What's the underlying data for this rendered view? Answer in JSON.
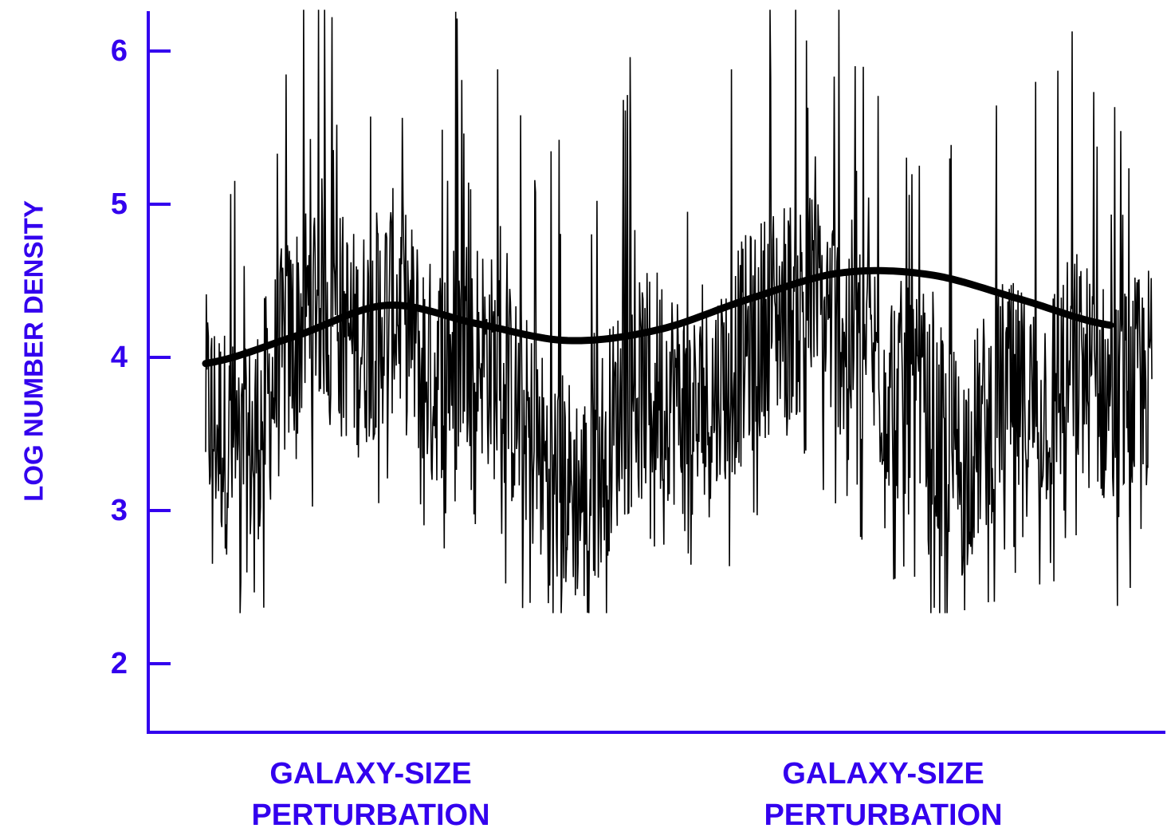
{
  "chart_data": {
    "type": "line",
    "ylabel": "LOG NUMBER DENSITY",
    "xlabel": "",
    "ylim": [
      1.55,
      6.3
    ],
    "yticks": [
      2,
      3,
      4,
      5,
      6
    ],
    "ytick_labels": [
      "2",
      "3",
      "4",
      "5",
      "6"
    ],
    "axis_color": "#3300ee",
    "line_color": "#000000",
    "x_captions": [
      {
        "line1": "GALAXY-SIZE",
        "line2": "PERTURBATION"
      },
      {
        "line1": "GALAXY-SIZE",
        "line2": "PERTURBATION"
      }
    ],
    "series": [
      {
        "role": "fluctuating density",
        "x": [
          0,
          0.04,
          0.08,
          0.12,
          0.16,
          0.2,
          0.24,
          0.28,
          0.32,
          0.36,
          0.4,
          0.44,
          0.48,
          0.52,
          0.56,
          0.6,
          0.64,
          0.68,
          0.72,
          0.76,
          0.8,
          0.84,
          0.88,
          0.92,
          0.96,
          1.0
        ],
        "y": [
          3.6,
          3.2,
          3.9,
          4.4,
          4.0,
          4.3,
          3.8,
          4.1,
          3.7,
          3.2,
          3.0,
          3.6,
          3.8,
          3.5,
          3.9,
          4.2,
          4.3,
          4.1,
          3.8,
          3.5,
          3.2,
          3.7,
          3.6,
          3.9,
          3.6,
          3.8
        ],
        "y_min": 2.33,
        "y_max": 6.27
      },
      {
        "role": "smooth mean",
        "x": [
          0,
          0.1,
          0.2,
          0.3,
          0.4,
          0.5,
          0.6,
          0.7,
          0.8,
          0.9,
          1.0
        ],
        "y": [
          3.96,
          4.14,
          4.34,
          4.22,
          4.11,
          4.18,
          4.38,
          4.55,
          4.54,
          4.38,
          4.21
        ]
      }
    ]
  }
}
